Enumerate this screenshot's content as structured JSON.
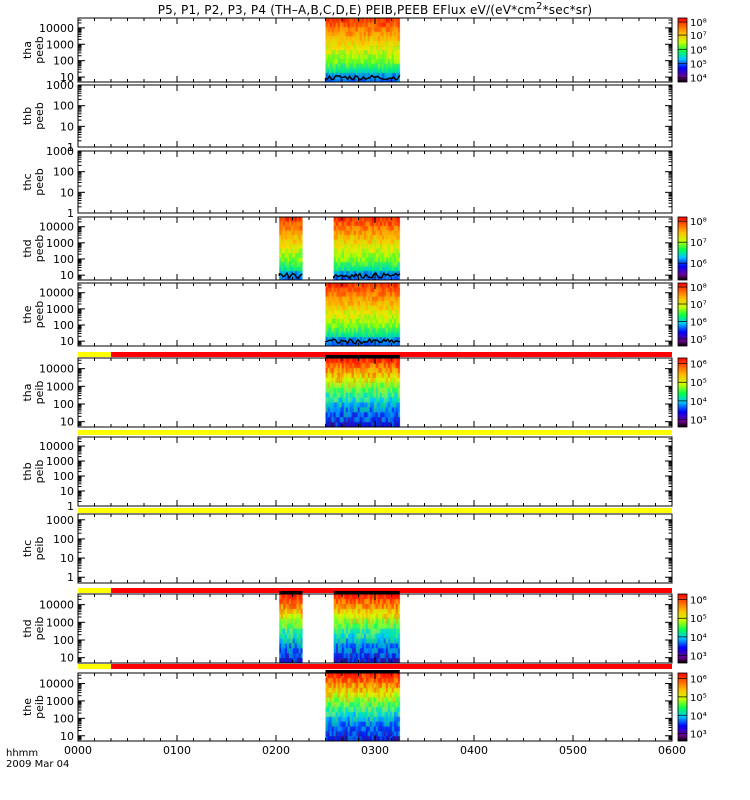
{
  "title_parts": {
    "main": "P5, P1, P2, P3, P4 (TH–A,B,C,D,E) PEIB,PEEB EFlux eV/(eV*cm",
    "sup": "2",
    "tail": "*sec*sr)"
  },
  "x_axis": {
    "label_line1": "hhmm",
    "label_line2": "2009 Mar 04",
    "ticks": [
      "0000",
      "0100",
      "0200",
      "0300",
      "0400",
      "0500",
      "0600"
    ],
    "range_minutes": [
      0,
      360
    ]
  },
  "colors": {
    "qual_yellow": "#ffff00",
    "qual_red": "#ff0000",
    "frame": "#000000"
  },
  "chart_data": [
    {
      "type": "heatmap",
      "probe": "tha",
      "product": "peeb",
      "ylabel": [
        "tha",
        "peeb"
      ],
      "yticks": [
        "10000",
        "1000",
        "100",
        "10"
      ],
      "yrange": [
        5,
        40000
      ],
      "cbar_ticks": [
        "10⁴",
        "10⁵",
        "10⁶",
        "10⁷",
        "10⁸"
      ],
      "cbar_range_exp": [
        3.7,
        8.2
      ],
      "segments": [
        {
          "start_min": 150,
          "end_min": 195
        }
      ],
      "quality_bar": false
    },
    {
      "type": "heatmap",
      "probe": "thb",
      "product": "peeb",
      "ylabel": [
        "thb",
        "peeb"
      ],
      "yticks": [
        "1000",
        "100",
        "10",
        "1"
      ],
      "yrange": [
        1,
        1000
      ],
      "segments": [],
      "quality_bar": false
    },
    {
      "type": "heatmap",
      "probe": "thc",
      "product": "peeb",
      "ylabel": [
        "thc",
        "peeb"
      ],
      "yticks": [
        "1000",
        "100",
        "10",
        "1"
      ],
      "yrange": [
        1,
        1000
      ],
      "segments": [],
      "quality_bar": false
    },
    {
      "type": "heatmap",
      "probe": "thd",
      "product": "peeb",
      "ylabel": [
        "thd",
        "peeb"
      ],
      "yticks": [
        "10000",
        "1000",
        "100",
        "10"
      ],
      "yrange": [
        5,
        40000
      ],
      "cbar_ticks": [
        "10⁶",
        "10⁷",
        "10⁸"
      ],
      "cbar_range_exp": [
        5.2,
        8.2
      ],
      "segments": [
        {
          "start_min": 122,
          "end_min": 136
        },
        {
          "start_min": 155,
          "end_min": 195
        }
      ],
      "quality_bar": false
    },
    {
      "type": "heatmap",
      "probe": "the",
      "product": "peeb",
      "ylabel": [
        "the",
        "peeb"
      ],
      "yticks": [
        "10000",
        "1000",
        "100",
        "10"
      ],
      "yrange": [
        5,
        40000
      ],
      "cbar_ticks": [
        "10⁵",
        "10⁶",
        "10⁷",
        "10⁸"
      ],
      "cbar_range_exp": [
        4.6,
        8.2
      ],
      "segments": [
        {
          "start_min": 150,
          "end_min": 195
        }
      ],
      "quality_bar": false
    },
    {
      "type": "heatmap",
      "probe": "tha",
      "product": "peib",
      "ylabel": [
        "tha",
        "peib"
      ],
      "yticks": [
        "10000",
        "1000",
        "100",
        "10"
      ],
      "yrange": [
        5,
        40000
      ],
      "cbar_ticks": [
        "10³",
        "10⁴",
        "10⁵",
        "10⁶"
      ],
      "cbar_range_exp": [
        2.6,
        6.3
      ],
      "segments": [
        {
          "start_min": 150,
          "end_min": 195
        }
      ],
      "quality_bar": true,
      "quality_split_min": 20
    },
    {
      "type": "heatmap",
      "probe": "thb",
      "product": "peib",
      "ylabel": [
        "thb",
        "peib"
      ],
      "yticks": [
        "10000",
        "1000",
        "100",
        "10",
        "1"
      ],
      "yrange": [
        1,
        40000
      ],
      "segments": [],
      "quality_bar": true,
      "quality_split_min": 360
    },
    {
      "type": "heatmap",
      "probe": "thc",
      "product": "peib",
      "ylabel": [
        "thc",
        "peib"
      ],
      "yticks": [
        "1000",
        "100",
        "10",
        "1"
      ],
      "yrange": [
        0.5,
        2000
      ],
      "segments": [],
      "quality_bar": true,
      "quality_split_min": 360
    },
    {
      "type": "heatmap",
      "probe": "thd",
      "product": "peib",
      "ylabel": [
        "thd",
        "peib"
      ],
      "yticks": [
        "10000",
        "1000",
        "100",
        "10"
      ],
      "yrange": [
        5,
        40000
      ],
      "cbar_ticks": [
        "10³",
        "10⁴",
        "10⁵",
        "10⁶"
      ],
      "cbar_range_exp": [
        2.6,
        6.3
      ],
      "segments": [
        {
          "start_min": 122,
          "end_min": 136
        },
        {
          "start_min": 155,
          "end_min": 195
        }
      ],
      "quality_bar": true,
      "quality_split_min": 20
    },
    {
      "type": "heatmap",
      "probe": "the",
      "product": "peib",
      "ylabel": [
        "the",
        "peib"
      ],
      "yticks": [
        "10000",
        "1000",
        "100",
        "10"
      ],
      "yrange": [
        5,
        40000
      ],
      "cbar_ticks": [
        "10³",
        "10⁴",
        "10⁵",
        "10⁶"
      ],
      "cbar_range_exp": [
        2.6,
        6.3
      ],
      "segments": [
        {
          "start_min": 150,
          "end_min": 195
        }
      ],
      "quality_bar": true,
      "quality_split_min": 20
    }
  ]
}
